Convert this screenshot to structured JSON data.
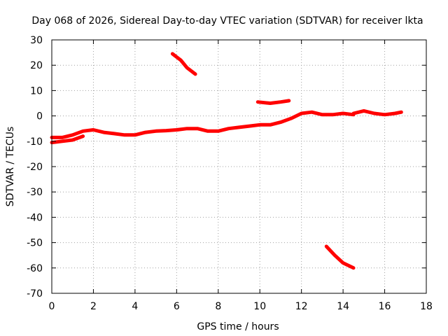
{
  "chart_data": {
    "type": "line",
    "title": "Day 068 of 2026, Sidereal Day-to-day VTEC variation (SDTVAR) for receiver lkta",
    "xlabel": "GPS time / hours",
    "ylabel": "SDTVAR / TECUs",
    "xlim": [
      0,
      18
    ],
    "ylim": [
      -70,
      30
    ],
    "x_ticks": [
      0,
      2,
      4,
      6,
      8,
      10,
      12,
      14,
      16,
      18
    ],
    "y_ticks": [
      30,
      20,
      10,
      0,
      -10,
      -20,
      -30,
      -40,
      -50,
      -60,
      -70
    ],
    "grid": true,
    "series_color": "#ff0000",
    "series": [
      {
        "name": "main-track",
        "x": [
          0.0,
          0.5,
          1.0,
          1.5,
          2.0,
          2.5,
          3.0,
          3.5,
          4.0,
          4.5,
          5.0,
          5.5,
          6.0,
          6.5,
          7.0,
          7.5,
          8.0,
          8.5,
          9.0,
          9.5,
          10.0,
          10.5,
          11.0,
          11.5,
          12.0,
          12.5,
          13.0,
          13.5,
          14.0,
          14.5
        ],
        "y": [
          -8.5,
          -8.5,
          -7.5,
          -6.0,
          -5.5,
          -6.5,
          -7.0,
          -7.5,
          -7.5,
          -6.5,
          -6.0,
          -5.8,
          -5.5,
          -5.0,
          -5.0,
          -6.0,
          -6.0,
          -5.0,
          -4.5,
          -4.0,
          -3.5,
          -3.5,
          -2.5,
          -1.0,
          1.0,
          1.5,
          0.5,
          0.5,
          1.0,
          0.5
        ]
      },
      {
        "name": "main-track-lower",
        "x": [
          0.0,
          0.5,
          1.0,
          1.5
        ],
        "y": [
          -10.5,
          -10.0,
          -9.5,
          -8.0
        ]
      },
      {
        "name": "segment-late",
        "x": [
          14.5,
          15.0,
          15.5,
          16.0,
          16.5,
          16.8
        ],
        "y": [
          1.0,
          2.0,
          1.0,
          0.5,
          1.0,
          1.5
        ]
      },
      {
        "name": "segment-high",
        "x": [
          5.8,
          6.2,
          6.5,
          6.9
        ],
        "y": [
          24.5,
          22.0,
          19.0,
          16.5
        ]
      },
      {
        "name": "segment-mid",
        "x": [
          9.9,
          10.5,
          11.0,
          11.4
        ],
        "y": [
          5.5,
          5.0,
          5.5,
          6.0
        ]
      },
      {
        "name": "segment-low",
        "x": [
          13.2,
          13.6,
          14.0,
          14.5
        ],
        "y": [
          -51.5,
          -55.0,
          -58.0,
          -60.0
        ]
      }
    ]
  }
}
